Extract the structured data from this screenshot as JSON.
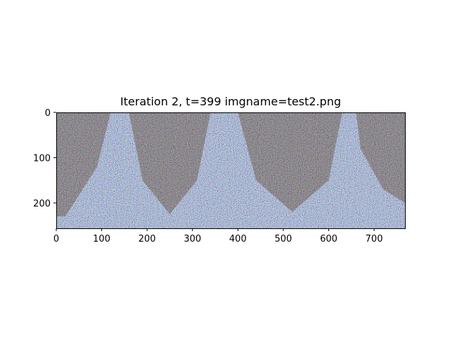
{
  "chart_data": {
    "type": "heatmap",
    "title": "Iteration 2, t=399 imgname=test2.png",
    "xlabel": "",
    "ylabel": "",
    "image_shape": [
      256,
      768
    ],
    "xlim": [
      0,
      768
    ],
    "ylim": [
      256,
      0
    ],
    "x_ticks": [
      0,
      100,
      200,
      300,
      400,
      500,
      600,
      700
    ],
    "y_ticks": [
      0,
      100,
      200
    ],
    "content": "RGB noise image with faint darker shapes",
    "grid": false,
    "colors": {
      "background": "#ffffff",
      "noise_light": "#9aa6b8",
      "noise_dark": "#6a5a4c",
      "axis": "#000000"
    }
  }
}
